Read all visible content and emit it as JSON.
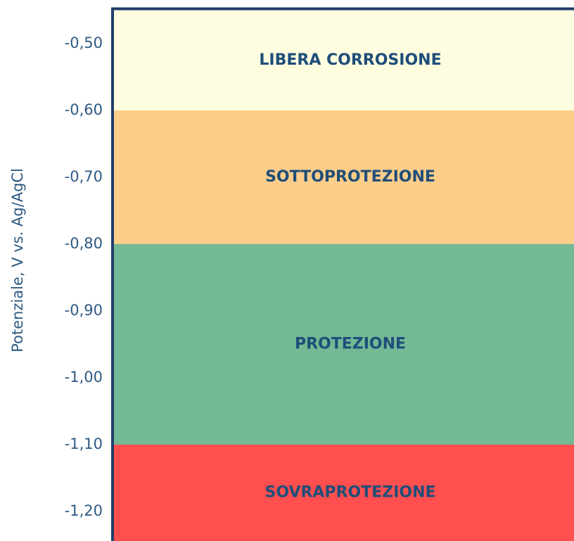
{
  "chart_data": {
    "type": "band",
    "y_axis_label": "Potenziale, V vs. Ag/AgCl",
    "ylim": [
      -1.25,
      -0.45
    ],
    "yticks": [
      {
        "value": -0.5,
        "label": "-0,50"
      },
      {
        "value": -0.6,
        "label": "-0,60"
      },
      {
        "value": -0.7,
        "label": "-0,70"
      },
      {
        "value": -0.8,
        "label": "-0,80"
      },
      {
        "value": -0.9,
        "label": "-0,90"
      },
      {
        "value": -1.0,
        "label": "-1,00"
      },
      {
        "value": -1.1,
        "label": "-1,10"
      },
      {
        "value": -1.2,
        "label": "-1,20"
      }
    ],
    "bands": [
      {
        "label": "LIBERA CORROSIONE",
        "from": -0.6,
        "to": -0.45,
        "color": "#fffde0"
      },
      {
        "label": "SOTTOPROTEZIONE",
        "from": -0.8,
        "to": -0.6,
        "color": "#fdcd8a"
      },
      {
        "label": "PROTEZIONE",
        "from": -1.1,
        "to": -0.8,
        "color": "#72b994"
      },
      {
        "label": "SOVRAPROTEZIONE",
        "from": -1.25,
        "to": -1.1,
        "color": "#ff4f4f"
      }
    ]
  }
}
